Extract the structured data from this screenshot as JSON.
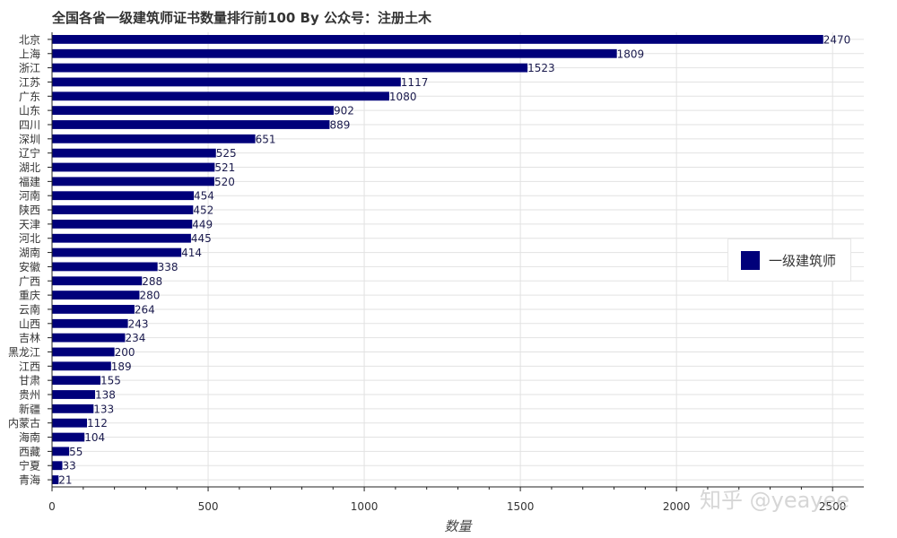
{
  "colors": {
    "bar": "#00007a",
    "grid": "#e2e2e2",
    "axis": "#222222"
  },
  "watermark": "知乎 @yeayee",
  "chart_data": {
    "type": "bar",
    "orientation": "horizontal",
    "title": "全国各省一级建筑师证书数量排行前100 By 公众号：注册土木",
    "xlabel": "数量",
    "ylabel": "",
    "xlim": [
      0,
      2600
    ],
    "x_ticks": [
      0,
      500,
      1000,
      1500,
      2000,
      2500
    ],
    "grid": true,
    "legend": {
      "position": "right",
      "entries": [
        "一级建筑师"
      ]
    },
    "categories": [
      "北京",
      "上海",
      "浙江",
      "江苏",
      "广东",
      "山东",
      "四川",
      "深圳",
      "辽宁",
      "湖北",
      "福建",
      "河南",
      "陕西",
      "天津",
      "河北",
      "湖南",
      "安徽",
      "广西",
      "重庆",
      "云南",
      "山西",
      "吉林",
      "黑龙江",
      "江西",
      "甘肃",
      "贵州",
      "新疆",
      "内蒙古",
      "海南",
      "西藏",
      "宁夏",
      "青海"
    ],
    "series": [
      {
        "name": "一级建筑师",
        "values": [
          2470,
          1809,
          1523,
          1117,
          1080,
          902,
          889,
          651,
          525,
          521,
          520,
          454,
          452,
          449,
          445,
          414,
          338,
          288,
          280,
          264,
          243,
          234,
          200,
          189,
          155,
          138,
          133,
          112,
          104,
          55,
          33,
          21
        ]
      }
    ]
  }
}
